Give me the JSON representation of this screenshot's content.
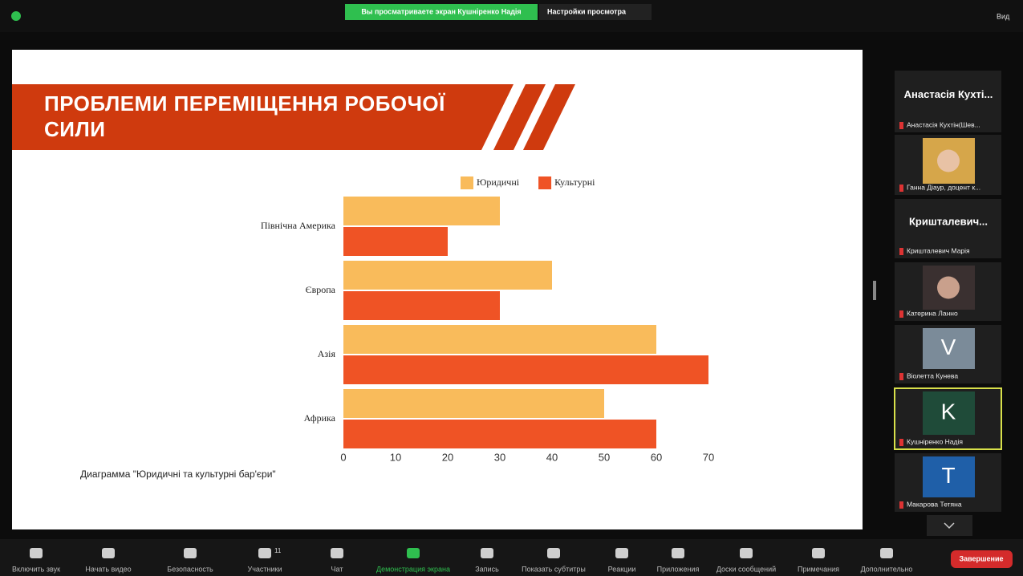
{
  "top_bar": {
    "banner": "Вы просматриваете экран Кушніренко Надія",
    "view_settings": "Настройки просмотра",
    "view": "Вид"
  },
  "slide": {
    "title": "ПРОБЛЕМИ ПЕРЕМІЩЕННЯ РОБОЧОЇ СИЛИ",
    "caption": "Диаграмма \"Юридичні та культурні бар'єри\""
  },
  "chart_data": {
    "type": "bar",
    "orientation": "horizontal",
    "categories": [
      "Північна Америка",
      "Європа",
      "Азія",
      "Африка"
    ],
    "series": [
      {
        "name": "Юридичні",
        "color": "#f9bb5b",
        "values": [
          30,
          40,
          60,
          50
        ]
      },
      {
        "name": "Культурні",
        "color": "#ef5325",
        "values": [
          20,
          30,
          70,
          60
        ]
      }
    ],
    "xlim": [
      0,
      70
    ],
    "xticks": [
      0,
      10,
      20,
      30,
      40,
      50,
      60,
      70
    ],
    "grid": false,
    "legend": "top"
  },
  "participants": [
    {
      "heading": "Анастасія Кухті...",
      "label": "Анастасія Кухтін(Шев..."
    },
    {
      "label": "Ганна Діаур, доцент к..."
    },
    {
      "heading": "Кришталевич...",
      "label": "Кришталевич Марія"
    },
    {
      "label": "Катерина Ланно"
    },
    {
      "avatar": "V",
      "label": "Віолетта Кунева"
    },
    {
      "avatar": "K",
      "label": "Кушніренко Надія"
    },
    {
      "avatar": "T",
      "label": "Макарова Тетяна"
    }
  ],
  "toolbar": {
    "items": [
      "Включить звук",
      "Начать видео",
      "Безопасность",
      "Участники",
      "Чат",
      "Демонстрация экрана",
      "Запись",
      "Показать субтитры",
      "Реакции",
      "Приложения",
      "Доски сообщений",
      "Примечания",
      "Дополнительно"
    ],
    "participants_count": 11,
    "end": "Завершение"
  }
}
